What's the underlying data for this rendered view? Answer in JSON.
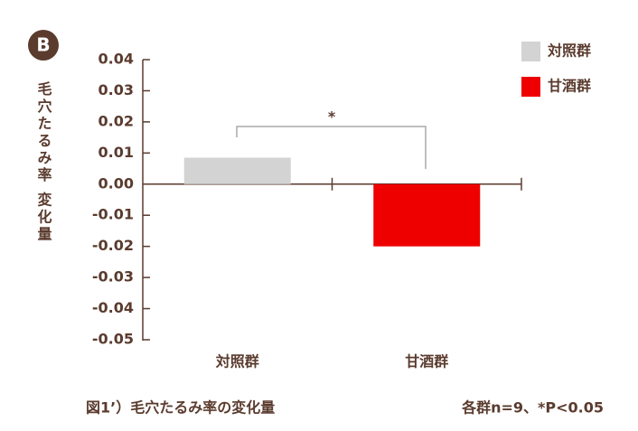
{
  "chart_data": {
    "type": "bar",
    "panel_label": "B",
    "y_label": "毛穴たるみ率 変化量",
    "categories": [
      "対照群",
      "甘酒群"
    ],
    "series": [
      {
        "name": "対照群",
        "color": "#d3d3d3",
        "values": [
          0.0085,
          null
        ]
      },
      {
        "name": "甘酒群",
        "color": "#ee0000",
        "values": [
          null,
          -0.02
        ]
      }
    ],
    "ylim": [
      -0.05,
      0.04
    ],
    "yticks": [
      0.04,
      0.03,
      0.02,
      0.01,
      {
        "value": 0,
        "label": "0.00"
      },
      -0.01,
      -0.02,
      -0.03,
      -0.04,
      -0.05
    ],
    "annotation": "*",
    "caption": "図1’）毛穴たるみ率の変化量",
    "note": "各群n=9、*P<0.05",
    "legend": "top-right"
  }
}
